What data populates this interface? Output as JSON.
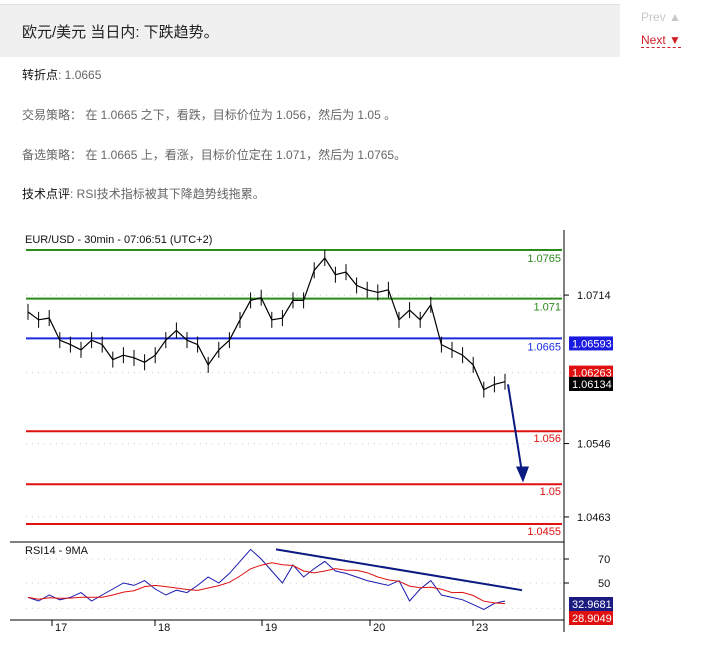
{
  "header": {
    "title": "欧元/美元 当日内: 下跌趋势。",
    "prev_label": "Prev ▲",
    "next_label": "Next ▼"
  },
  "body": {
    "pivot_label": "转折点",
    "pivot_value": ": 1.0665",
    "strategy": "交易策略： 在 1.0665 之下，看跌，目标价位为 1.056，然后为 1.05 。",
    "alternative": "备选策略： 在 1.0665 上，看涨，目标价位定在 1.071，然后为 1.0765。",
    "comment_label": "技术点评",
    "comment_value": ": RSI技术指标被其下降趋势线拖累。"
  },
  "chart_data": {
    "type": "line",
    "title": "EUR/USD - 30min - 07:06:51 (UTC+2)",
    "ylim": [
      1.0434,
      1.0785
    ],
    "x_tick_labels": [
      "17",
      "18",
      "19",
      "20",
      "23"
    ],
    "y_tick_labels": [
      "1.0714",
      "1.0546",
      "1.0463"
    ],
    "levels": [
      {
        "value": 1.0765,
        "label": "1.0765",
        "color": "#2a8a1a"
      },
      {
        "value": 1.071,
        "label": "1.071",
        "color": "#2a8a1a"
      },
      {
        "value": 1.0665,
        "label": "1.0665",
        "color": "#1a2adf"
      },
      {
        "value": 1.056,
        "label": "1.056",
        "color": "#e01010"
      },
      {
        "value": 1.05,
        "label": "1.05",
        "color": "#e01010"
      },
      {
        "value": 1.0455,
        "label": "1.0455",
        "color": "#e01010"
      }
    ],
    "price_tags": [
      {
        "value": 1.06593,
        "label": "1.06593",
        "color": "#1a1ae0"
      },
      {
        "value": 1.06263,
        "label": "1.06263",
        "color": "#e01010"
      },
      {
        "value": 1.06134,
        "label": "1.06134",
        "color": "#000000"
      }
    ],
    "close": [
      1.0695,
      1.0686,
      1.0688,
      1.0663,
      1.0658,
      1.0652,
      1.0663,
      1.0658,
      1.0641,
      1.0646,
      1.0643,
      1.0638,
      1.0646,
      1.0663,
      1.0674,
      1.0663,
      1.0658,
      1.0635,
      1.0652,
      1.0663,
      1.0686,
      1.0708,
      1.0711,
      1.0686,
      1.0688,
      1.0708,
      1.0708,
      1.0742,
      1.0756,
      1.0737,
      1.074,
      1.0725,
      1.072,
      1.0717,
      1.072,
      1.0686,
      1.0697,
      1.0686,
      1.0703,
      1.0658,
      1.0652,
      1.0646,
      1.0635,
      1.0607,
      1.0613,
      1.0616
    ],
    "forecast_arrow": {
      "from": 1.0613,
      "to": 1.0502
    },
    "rsi": {
      "label": "RSI14 - 9MA",
      "ylim": [
        20,
        82
      ],
      "y_tick_labels": [
        "70",
        "50"
      ],
      "values": [
        38,
        35,
        40,
        36,
        38,
        42,
        35,
        40,
        45,
        50,
        48,
        52,
        45,
        40,
        44,
        42,
        48,
        55,
        50,
        58,
        68,
        78,
        70,
        60,
        50,
        65,
        55,
        62,
        68,
        60,
        58,
        55,
        52,
        50,
        48,
        52,
        35,
        45,
        52,
        40,
        38,
        36,
        32,
        28,
        33,
        35
      ],
      "tags": [
        {
          "value": 32.9681,
          "label": "32.9681",
          "color": "#1a1a80"
        },
        {
          "value": 28.9049,
          "label": "28.9049",
          "color": "#e01010"
        }
      ],
      "trendline": [
        78,
        44
      ]
    },
    "colors": {
      "price": "#000000",
      "rsi": "#1a1ab0",
      "rsi_ma": "#e01010",
      "arrow": "#0a1a80"
    }
  }
}
